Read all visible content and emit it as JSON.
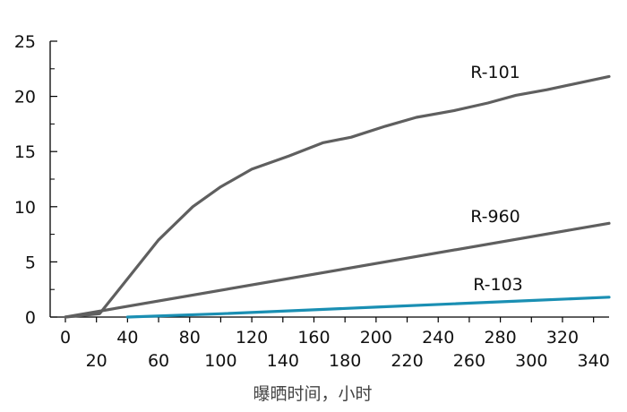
{
  "chart_data": {
    "type": "line",
    "xlabel": "曝晒时间，小时",
    "ylabel": "",
    "xlim": [
      0,
      350
    ],
    "ylim": [
      0,
      25
    ],
    "xticks_major": [
      0,
      40,
      80,
      120,
      160,
      200,
      240,
      280,
      320
    ],
    "xticks_minor": [
      20,
      60,
      100,
      140,
      180,
      220,
      260,
      300,
      340
    ],
    "yticks": [
      0,
      5,
      10,
      15,
      20,
      25
    ],
    "grid": false,
    "series": [
      {
        "name": "R-101",
        "color": "#5f5f5f",
        "x": [
          0,
          22,
          60,
          82,
          100,
          120,
          144,
          166,
          184,
          206,
          226,
          250,
          272,
          290,
          310,
          350
        ],
        "y": [
          0,
          0.3,
          7,
          10,
          11.8,
          13.4,
          14.6,
          15.8,
          16.3,
          17.3,
          18.1,
          18.7,
          19.4,
          20.1,
          20.6,
          21.8
        ]
      },
      {
        "name": "R-960",
        "color": "#5f5f5f",
        "x": [
          0,
          350
        ],
        "y": [
          0,
          8.5
        ]
      },
      {
        "name": "R-103",
        "color": "#1a8fb3",
        "x": [
          40,
          100,
          150,
          200,
          250,
          300,
          350
        ],
        "y": [
          0,
          0.3,
          0.6,
          0.9,
          1.2,
          1.5,
          1.8
        ]
      }
    ]
  }
}
